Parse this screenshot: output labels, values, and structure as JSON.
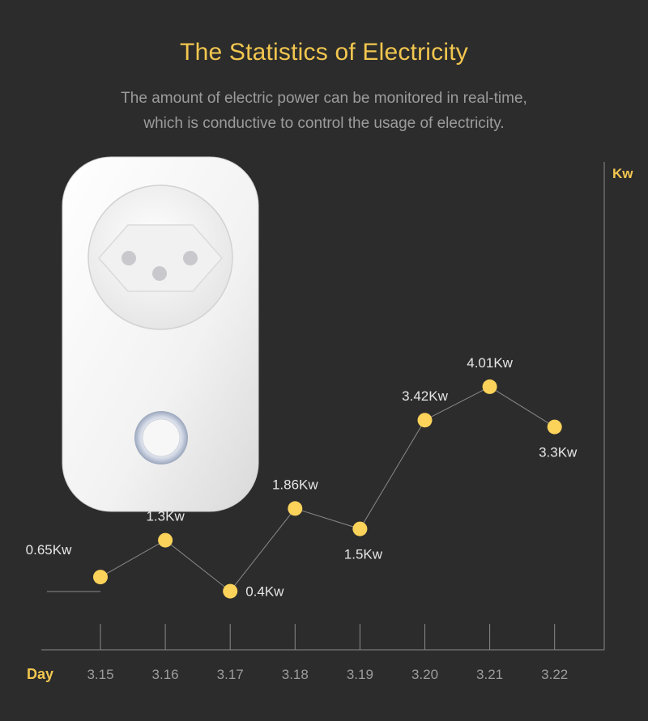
{
  "header": {
    "title": "The Statistics of Electricity",
    "subtitle_line1": "The amount of electric power can be monitored in real-time,",
    "subtitle_line2": "which is conductive to control the usage of electricity."
  },
  "colors": {
    "background": "#2c2c2c",
    "accent": "#f2c64f",
    "point": "#fbd25a",
    "text_light": "#e6e6e6",
    "text_muted": "#9c9c9c",
    "axis": "#8a8a8a"
  },
  "chart_data": {
    "type": "line",
    "title": "The Statistics of Electricity",
    "xlabel": "Day",
    "ylabel": "Kw",
    "categories": [
      "3.15",
      "3.16",
      "3.17",
      "3.18",
      "3.19",
      "3.20",
      "3.21",
      "3.22"
    ],
    "values": [
      0.65,
      1.3,
      0.4,
      1.86,
      1.5,
      3.42,
      4.01,
      3.3
    ],
    "data_labels": [
      "0.65Kw",
      "1.3Kw",
      "0.4Kw",
      "1.86Kw",
      "1.5Kw",
      "3.42Kw",
      "4.01Kw",
      "3.3Kw"
    ],
    "grid": false,
    "legend": "none"
  }
}
